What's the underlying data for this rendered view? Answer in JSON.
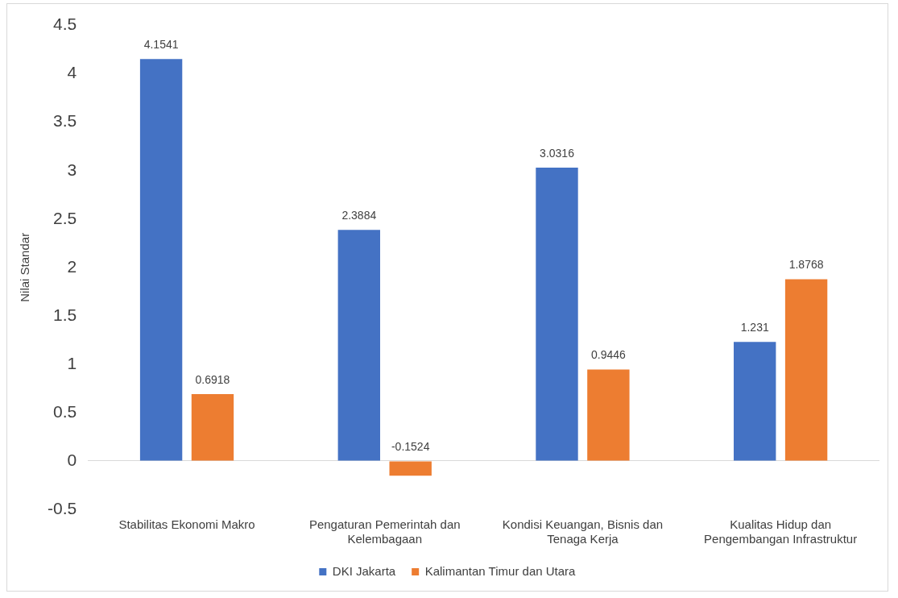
{
  "chart_data": {
    "type": "bar",
    "ylabel": "Nilai Standar",
    "categories": [
      "Stabilitas Ekonomi Makro",
      "Pengaturan Pemerintah dan Kelembagaan",
      "Kondisi Keuangan, Bisnis dan Tenaga Kerja",
      "Kualitas Hidup dan Pengembangan Infrastruktur"
    ],
    "series": [
      {
        "name": "DKI Jakarta",
        "color": "#4472c4",
        "values": [
          4.1541,
          2.3884,
          3.0316,
          1.231
        ]
      },
      {
        "name": "Kalimantan Timur dan Utara",
        "color": "#ed7d31",
        "values": [
          0.6918,
          -0.1524,
          0.9446,
          1.8768
        ]
      }
    ],
    "ylim": [
      -0.5,
      4.5
    ],
    "yticks": [
      -0.5,
      0,
      0.5,
      1,
      1.5,
      2,
      2.5,
      3,
      3.5,
      4,
      4.5
    ],
    "data_labels": true,
    "legend": "bottom"
  }
}
